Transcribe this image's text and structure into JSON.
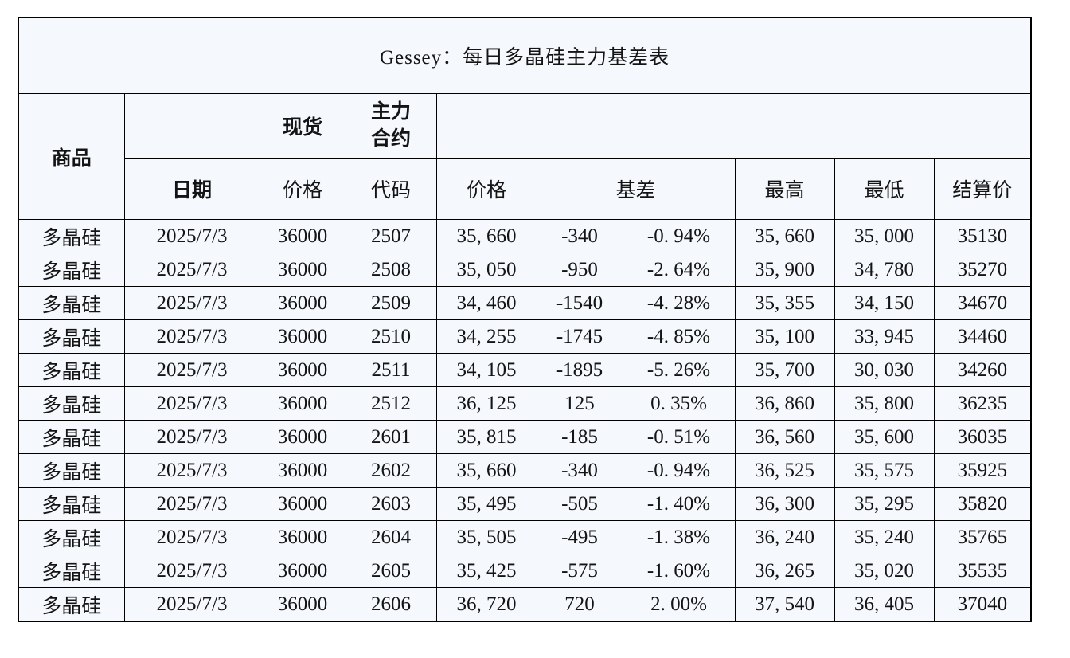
{
  "title": "Gessey：每日多晶硅主力基差表",
  "colors": {
    "title_bg": "#0070c0",
    "title_text": "#ffffff",
    "header_white": "#fbfdff",
    "header_shade": "#e7ebf5",
    "cell_bg": "#f5f8fc",
    "border": "#000000",
    "commodity_text": "#2b2bd9",
    "date_text": "#3d62b0",
    "basis_negative": "#00b26b",
    "basis_positive": "#f40000"
  },
  "header": {
    "commodity": "商品",
    "date": "日期",
    "spot": "现货",
    "main_contract": "主力合约",
    "spot_price": "价格",
    "code": "代码",
    "price": "价格",
    "basis": "基差",
    "high": "最高",
    "low": "最低",
    "settle": "结算价"
  },
  "rows": [
    {
      "commodity": "多晶硅",
      "date": "2025/7/3",
      "spot_price": "36000",
      "code": "2507",
      "price": "35, 660",
      "basis": "-340",
      "basis_pct": "-0. 94%",
      "high": "35, 660",
      "low": "35, 000",
      "settle": "35130"
    },
    {
      "commodity": "多晶硅",
      "date": "2025/7/3",
      "spot_price": "36000",
      "code": "2508",
      "price": "35, 050",
      "basis": "-950",
      "basis_pct": "-2. 64%",
      "high": "35, 900",
      "low": "34, 780",
      "settle": "35270"
    },
    {
      "commodity": "多晶硅",
      "date": "2025/7/3",
      "spot_price": "36000",
      "code": "2509",
      "price": "34, 460",
      "basis": "-1540",
      "basis_pct": "-4. 28%",
      "high": "35, 355",
      "low": "34, 150",
      "settle": "34670"
    },
    {
      "commodity": "多晶硅",
      "date": "2025/7/3",
      "spot_price": "36000",
      "code": "2510",
      "price": "34, 255",
      "basis": "-1745",
      "basis_pct": "-4. 85%",
      "high": "35, 100",
      "low": "33, 945",
      "settle": "34460"
    },
    {
      "commodity": "多晶硅",
      "date": "2025/7/3",
      "spot_price": "36000",
      "code": "2511",
      "price": "34, 105",
      "basis": "-1895",
      "basis_pct": "-5. 26%",
      "high": "35, 700",
      "low": "30, 030",
      "settle": "34260"
    },
    {
      "commodity": "多晶硅",
      "date": "2025/7/3",
      "spot_price": "36000",
      "code": "2512",
      "price": "36, 125",
      "basis": "125",
      "basis_pct": "0. 35%",
      "high": "36, 860",
      "low": "35, 800",
      "settle": "36235"
    },
    {
      "commodity": "多晶硅",
      "date": "2025/7/3",
      "spot_price": "36000",
      "code": "2601",
      "price": "35, 815",
      "basis": "-185",
      "basis_pct": "-0. 51%",
      "high": "36, 560",
      "low": "35, 600",
      "settle": "36035"
    },
    {
      "commodity": "多晶硅",
      "date": "2025/7/3",
      "spot_price": "36000",
      "code": "2602",
      "price": "35, 660",
      "basis": "-340",
      "basis_pct": "-0. 94%",
      "high": "36, 525",
      "low": "35, 575",
      "settle": "35925"
    },
    {
      "commodity": "多晶硅",
      "date": "2025/7/3",
      "spot_price": "36000",
      "code": "2603",
      "price": "35, 495",
      "basis": "-505",
      "basis_pct": "-1. 40%",
      "high": "36, 300",
      "low": "35, 295",
      "settle": "35820"
    },
    {
      "commodity": "多晶硅",
      "date": "2025/7/3",
      "spot_price": "36000",
      "code": "2604",
      "price": "35, 505",
      "basis": "-495",
      "basis_pct": "-1. 38%",
      "high": "36, 240",
      "low": "35, 240",
      "settle": "35765"
    },
    {
      "commodity": "多晶硅",
      "date": "2025/7/3",
      "spot_price": "36000",
      "code": "2605",
      "price": "35, 425",
      "basis": "-575",
      "basis_pct": "-1. 60%",
      "high": "36, 265",
      "low": "35, 020",
      "settle": "35535"
    },
    {
      "commodity": "多晶硅",
      "date": "2025/7/3",
      "spot_price": "36000",
      "code": "2606",
      "price": "36, 720",
      "basis": "720",
      "basis_pct": "2. 00%",
      "high": "37, 540",
      "low": "36, 405",
      "settle": "37040"
    }
  ]
}
